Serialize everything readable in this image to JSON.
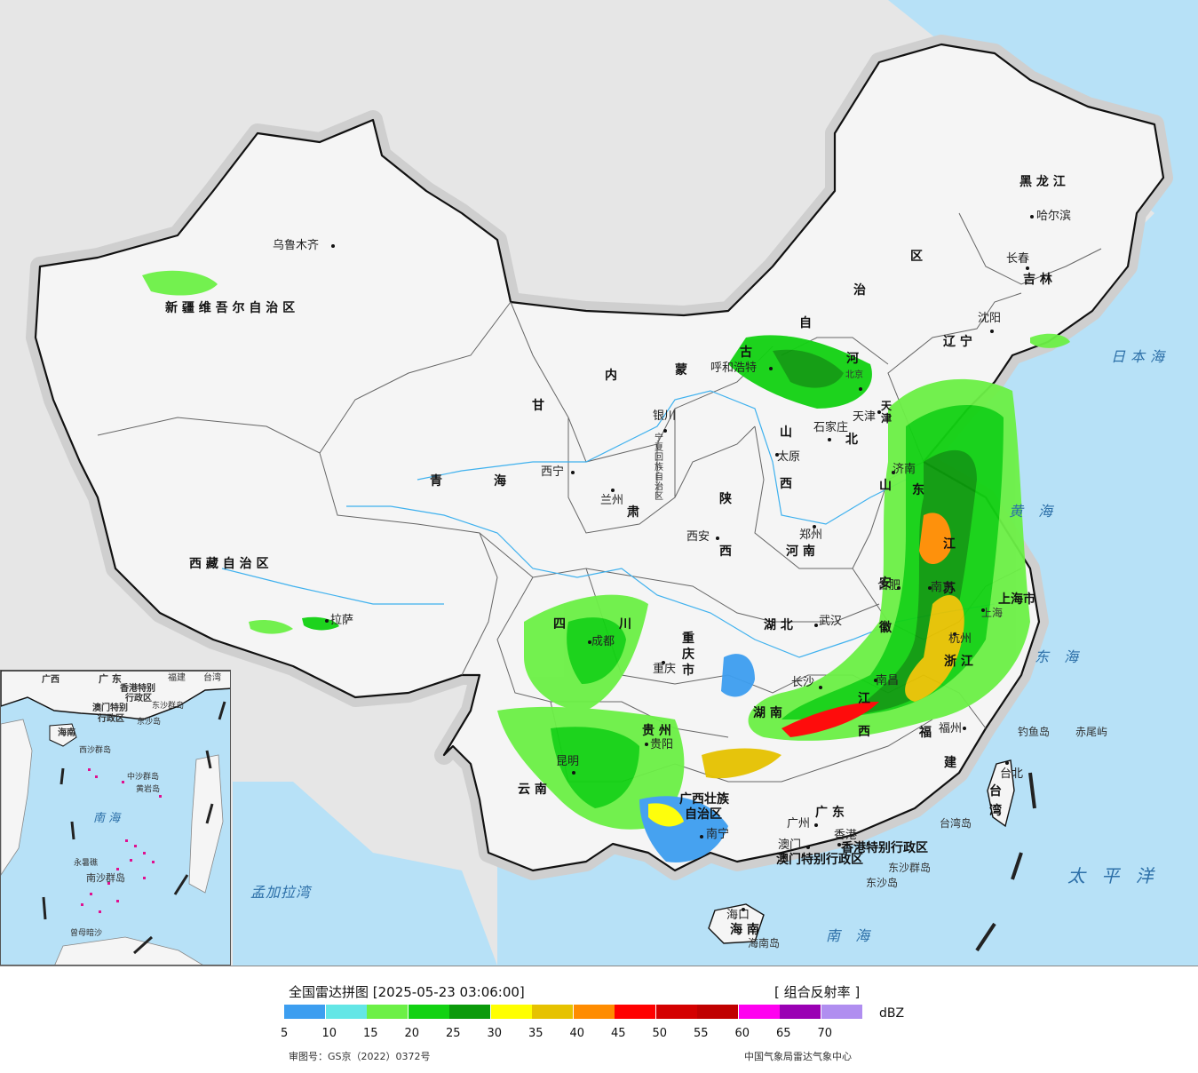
{
  "map": {
    "provinces": [
      {
        "id": "xinjiang",
        "label": "新 疆 维 吾 尔 自 治 区"
      },
      {
        "id": "xizang",
        "label": "西 藏 自 治 区"
      },
      {
        "id": "qinghai1",
        "label": "青"
      },
      {
        "id": "qinghai2",
        "label": "海"
      },
      {
        "id": "gansu",
        "label": "甘"
      },
      {
        "id": "neimenggu1",
        "label": "内"
      },
      {
        "id": "neimenggu2",
        "label": "蒙"
      },
      {
        "id": "neimenggu3",
        "label": "古"
      },
      {
        "id": "neimenggu4",
        "label": "自"
      },
      {
        "id": "neimenggu5",
        "label": "治"
      },
      {
        "id": "neimenggu6",
        "label": "区"
      },
      {
        "id": "heilongjiang",
        "label": "黑 龙 江"
      },
      {
        "id": "jilin",
        "label": "吉 林"
      },
      {
        "id": "liaoning",
        "label": "辽 宁"
      },
      {
        "id": "hebei1",
        "label": "河"
      },
      {
        "id": "hebei2",
        "label": "北"
      },
      {
        "id": "shanxi1",
        "label": "山"
      },
      {
        "id": "shanxi2",
        "label": "西"
      },
      {
        "id": "shaanxi1",
        "label": "陕"
      },
      {
        "id": "shaanxi2",
        "label": "西"
      },
      {
        "id": "ningxia",
        "label": "宁夏回族自治区"
      },
      {
        "id": "shandong1",
        "label": "山"
      },
      {
        "id": "shandong2",
        "label": "东"
      },
      {
        "id": "henan",
        "label": "河 南"
      },
      {
        "id": "hubei",
        "label": "湖 北"
      },
      {
        "id": "hunan",
        "label": "湖 南"
      },
      {
        "id": "sichuan1",
        "label": "四"
      },
      {
        "id": "sichuan2",
        "label": "川"
      },
      {
        "id": "chongqing",
        "label": "重 庆 市"
      },
      {
        "id": "guizhou",
        "label": "贵 州"
      },
      {
        "id": "yunnan",
        "label": "云   南"
      },
      {
        "id": "guangxi1",
        "label": "广西壮族"
      },
      {
        "id": "guangxi2",
        "label": "自治区"
      },
      {
        "id": "guangdong",
        "label": "广 东"
      },
      {
        "id": "jiangxi1",
        "label": "江"
      },
      {
        "id": "jiangxi2",
        "label": "西"
      },
      {
        "id": "fujian1",
        "label": "福"
      },
      {
        "id": "fujian2",
        "label": "建"
      },
      {
        "id": "zhejiang",
        "label": "浙 江"
      },
      {
        "id": "anhui",
        "label": "安 徽"
      },
      {
        "id": "jiangsu",
        "label": "江 苏"
      },
      {
        "id": "shanghai",
        "label": "上海市"
      },
      {
        "id": "taiwan",
        "label": "台 湾"
      },
      {
        "id": "hainan",
        "label": "海 南"
      },
      {
        "id": "hongkong",
        "label": "香港特别行政区"
      },
      {
        "id": "macao",
        "label": "澳门特别行政区"
      },
      {
        "id": "tianjin",
        "label": "天津"
      },
      {
        "id": "gansu2",
        "label": "肃"
      }
    ],
    "cities": [
      {
        "id": "urumqi",
        "label": "乌鲁木齐"
      },
      {
        "id": "lhasa",
        "label": "拉萨"
      },
      {
        "id": "xining",
        "label": "西宁"
      },
      {
        "id": "lanzhou",
        "label": "兰州"
      },
      {
        "id": "yinchuan",
        "label": "银川"
      },
      {
        "id": "hohhot",
        "label": "呼和浩特"
      },
      {
        "id": "beijing",
        "label": "北京"
      },
      {
        "id": "tianjin_c",
        "label": "天津"
      },
      {
        "id": "shijiazhuang",
        "label": "石家庄"
      },
      {
        "id": "taiyuan",
        "label": "太原"
      },
      {
        "id": "jinan",
        "label": "济南"
      },
      {
        "id": "zhengzhou",
        "label": "郑州"
      },
      {
        "id": "xian",
        "label": "西安"
      },
      {
        "id": "chengdu",
        "label": "成都"
      },
      {
        "id": "chongqing_c",
        "label": "重庆"
      },
      {
        "id": "wuhan",
        "label": "武汉"
      },
      {
        "id": "hefei",
        "label": "合肥"
      },
      {
        "id": "nanjing",
        "label": "南京"
      },
      {
        "id": "shanghai_c",
        "label": "上海"
      },
      {
        "id": "hangzhou",
        "label": "杭州"
      },
      {
        "id": "nanchang",
        "label": "南昌"
      },
      {
        "id": "changsha",
        "label": "长沙"
      },
      {
        "id": "guiyang",
        "label": "贵阳"
      },
      {
        "id": "kunming",
        "label": "昆明"
      },
      {
        "id": "nanning",
        "label": "南宁"
      },
      {
        "id": "guangzhou",
        "label": "广州"
      },
      {
        "id": "macao_c",
        "label": "澳门"
      },
      {
        "id": "hongkong_c",
        "label": "香港"
      },
      {
        "id": "fuzhou",
        "label": "福州"
      },
      {
        "id": "taibei",
        "label": "台北"
      },
      {
        "id": "haikou",
        "label": "海口"
      },
      {
        "id": "shenyang",
        "label": "沈阳"
      },
      {
        "id": "changchun",
        "label": "长春"
      },
      {
        "id": "harbin",
        "label": "哈尔滨"
      }
    ],
    "seas": [
      {
        "id": "japan_sea",
        "label": "日本海"
      },
      {
        "id": "yellow_sea",
        "label": "黄  海"
      },
      {
        "id": "east_sea",
        "label": "东  海"
      },
      {
        "id": "pacific",
        "label": "太  平  洋"
      },
      {
        "id": "south_sea",
        "label": "南  海"
      },
      {
        "id": "bengal",
        "label": "孟加拉湾"
      }
    ],
    "islands": [
      {
        "id": "diaoyu",
        "label": "钓鱼岛"
      },
      {
        "id": "chiwei",
        "label": "赤尾屿"
      },
      {
        "id": "taiwan_island",
        "label": "台湾岛"
      },
      {
        "id": "dongsha_qd",
        "label": "东沙群岛"
      },
      {
        "id": "dongsha_d",
        "label": "东沙岛"
      },
      {
        "id": "hainan_island",
        "label": "海南岛"
      }
    ],
    "inset_labels": [
      {
        "id": "i_guangdong",
        "label": "广 东"
      },
      {
        "id": "i_fujian",
        "label": "福建"
      },
      {
        "id": "i_taiwan",
        "label": "台湾"
      },
      {
        "id": "i_hk",
        "label": "香港特别"
      },
      {
        "id": "i_hk2",
        "label": "行政区"
      },
      {
        "id": "i_macao",
        "label": "澳门特别"
      },
      {
        "id": "i_macao2",
        "label": "行政区"
      },
      {
        "id": "i_dongsha",
        "label": "东沙群岛"
      },
      {
        "id": "i_dongsha2",
        "label": "东沙岛"
      },
      {
        "id": "i_hainan",
        "label": "海南"
      },
      {
        "id": "i_xisha",
        "label": "西沙群岛"
      },
      {
        "id": "i_zhongsha",
        "label": "中沙群岛"
      },
      {
        "id": "i_huangyan",
        "label": "黄岩岛"
      },
      {
        "id": "i_nanhai",
        "label": "南  海"
      },
      {
        "id": "i_nansha",
        "label": "南沙群岛"
      },
      {
        "id": "i_yongshu",
        "label": "永暑礁"
      },
      {
        "id": "i_zengmu",
        "label": "曾母暗沙"
      },
      {
        "id": "i_guangxi",
        "label": "广西"
      }
    ]
  },
  "legend": {
    "title": "全国雷达拼图 [2025-05-23 03:06:00]",
    "product": "[ 组合反射率 ]",
    "unit": "dBZ",
    "colors": [
      "#3d9ef0",
      "#63e6e6",
      "#6cf046",
      "#12d212",
      "#0b9a0b",
      "#ffff00",
      "#e6c200",
      "#ff8c00",
      "#ff0000",
      "#d40000",
      "#c00000",
      "#ff00f0",
      "#9a00b4",
      "#b08ef0"
    ],
    "ticks": [
      "5",
      "10",
      "15",
      "20",
      "25",
      "30",
      "35",
      "40",
      "45",
      "50",
      "55",
      "60",
      "65",
      "70"
    ],
    "review_no": "审图号：GS京（2022）0372号",
    "publisher": "中国气象局雷达气象中心"
  }
}
